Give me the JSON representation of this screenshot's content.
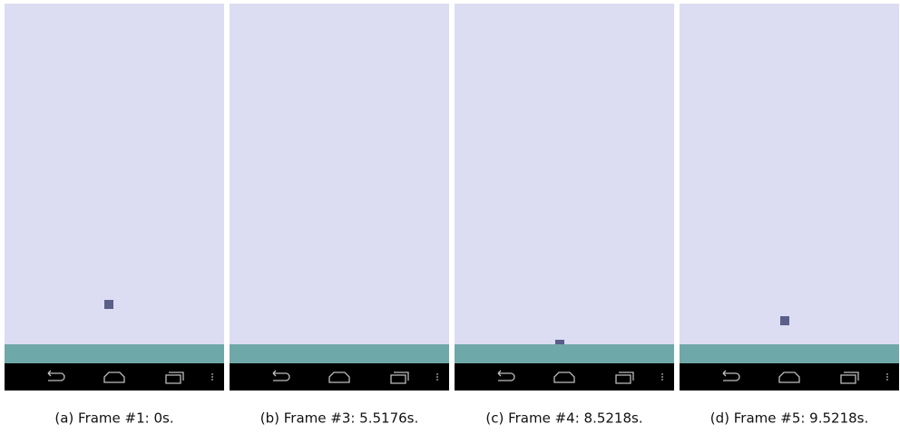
{
  "panels": [
    {
      "caption": "(a) Frame #1: 0s."
    },
    {
      "caption": "(b) Frame #3: 5.5176s."
    },
    {
      "caption": "(c) Frame #4: 8.5218s."
    },
    {
      "caption": "(d) Frame #5: 9.5218s."
    }
  ]
}
